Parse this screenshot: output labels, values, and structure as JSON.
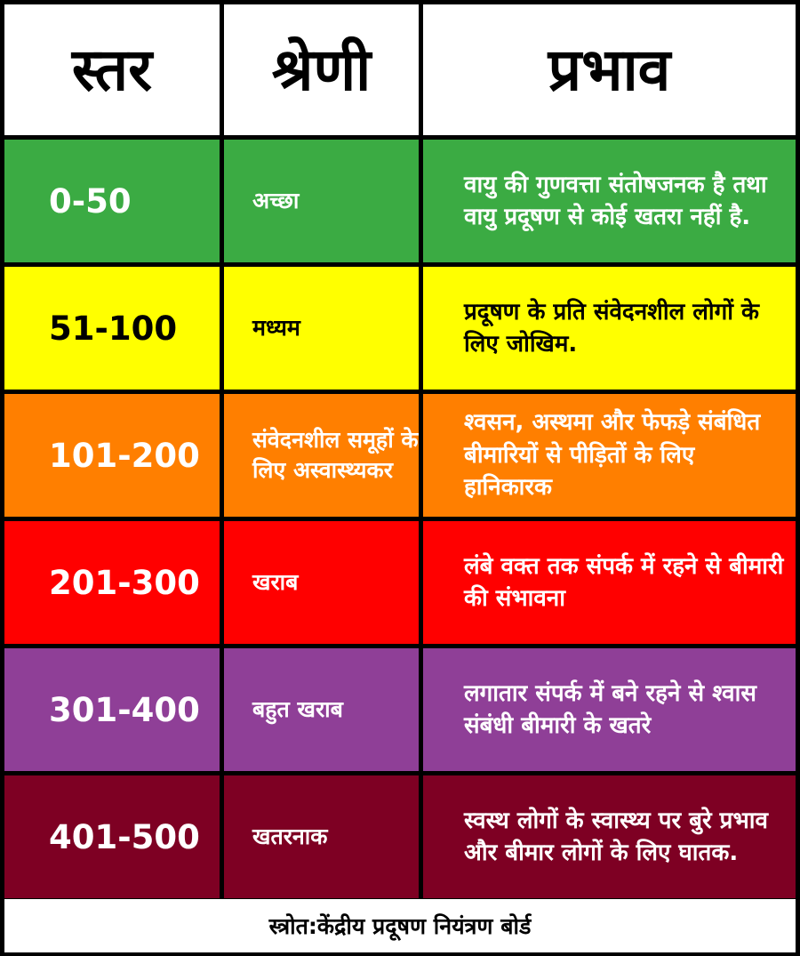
{
  "header": {
    "level": "स्तर",
    "category": "श्रेणी",
    "effect": "प्रभाव"
  },
  "rows": [
    {
      "level": "0-50",
      "category": "अच्छा",
      "effect": "वायु की गुणवत्ता संतोषजनक है तथा वायु प्रदूषण से कोई खतरा नहीं है.",
      "bg": "#3bab43",
      "fg": "#ffffff"
    },
    {
      "level": "51-100",
      "category": "मध्यम",
      "effect": "प्रदूषण के प्रति संवेदनशील लोगों के लिए जोखिम.",
      "bg": "#ffff00",
      "fg": "#000000"
    },
    {
      "level": "101-200",
      "category": "संवेदनशील समूहों के लिए अस्वास्थ्यकर",
      "effect": "श्वसन, अस्थमा और फेफड़े संबंधित बीमारियों से पीड़ितों के लिए हानिकारक",
      "bg": "#ff7f00",
      "fg": "#ffffff"
    },
    {
      "level": "201-300",
      "category": "खराब",
      "effect": "लंबे वक्त तक संपर्क में रहने से बीमारी की संभावना",
      "bg": "#ff0000",
      "fg": "#ffffff"
    },
    {
      "level": "301-400",
      "category": "बहुत खराब",
      "effect": "लगातार संपर्क में बने रहने से श्वास संबंधी बीमारी के खतरे",
      "bg": "#8f3f97",
      "fg": "#ffffff"
    },
    {
      "level": "401-500",
      "category": "खतरनाक",
      "effect": "स्वस्थ लोगों के स्वास्थ्य पर बुरे प्रभाव और बीमार लोगों के लिए घातक.",
      "bg": "#7e0023",
      "fg": "#ffffff"
    }
  ],
  "footer": {
    "source": "स्त्रोत:केंद्रीय प्रदूषण नियंत्रण बोर्ड"
  }
}
